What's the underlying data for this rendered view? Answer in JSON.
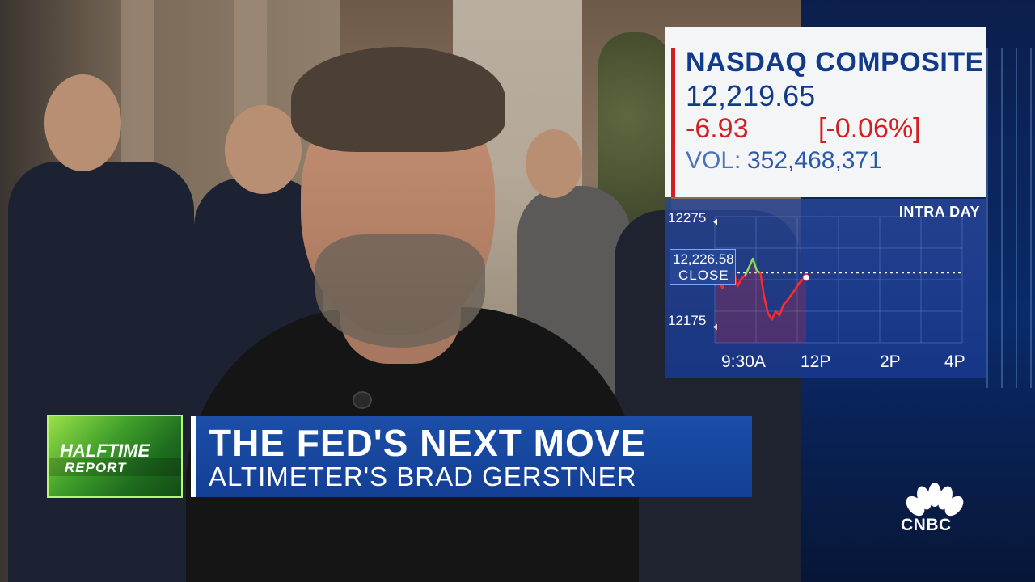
{
  "quote": {
    "index_name": "NASDAQ COMPOSITE",
    "price": "12,219.65",
    "change": "-6.93",
    "percent": "[-0.06%]",
    "volume_label": "VOL:",
    "volume_value": "352,468,371",
    "colors": {
      "name": "#123a8a",
      "negative": "#d21f1f",
      "accent": "#d21f1f"
    }
  },
  "chart_data": {
    "type": "line",
    "title": "INTRA DAY",
    "xlabel": "",
    "ylabel": "",
    "ylim": [
      12160,
      12280
    ],
    "y_ticks": [
      "12275",
      "12175"
    ],
    "x_ticks": [
      "9:30A",
      "12P",
      "2P",
      "4P"
    ],
    "close_reference": {
      "value": "12,226.58",
      "label": "CLOSE"
    },
    "series": [
      {
        "x_hours": [
          9.5,
          9.6,
          9.7,
          9.8,
          9.9,
          10.0,
          10.1,
          10.2,
          10.3,
          10.4,
          10.5,
          10.6,
          10.7,
          10.8,
          10.9,
          11.0,
          11.1,
          11.2,
          11.3,
          11.4,
          11.5,
          11.6,
          11.7,
          11.8,
          11.9
        ],
        "values": [
          12215,
          12220,
          12212,
          12222,
          12218,
          12228,
          12214,
          12221,
          12224,
          12232,
          12240,
          12229,
          12226,
          12203,
          12188,
          12182,
          12190,
          12186,
          12196,
          12200,
          12205,
          12210,
          12216,
          12220,
          12222
        ]
      }
    ]
  },
  "lower_third": {
    "show_line1": "HALFTIME",
    "show_line2": "REPORT",
    "headline": "THE FED'S NEXT MOVE",
    "subhead": "ALTIMETER'S BRAD GERSTNER"
  },
  "network": {
    "name": "CNBC"
  }
}
